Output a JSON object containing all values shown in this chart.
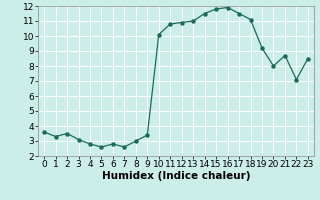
{
  "x": [
    0,
    1,
    2,
    3,
    4,
    5,
    6,
    7,
    8,
    9,
    10,
    11,
    12,
    13,
    14,
    15,
    16,
    17,
    18,
    19,
    20,
    21,
    22,
    23
  ],
  "y": [
    3.6,
    3.3,
    3.5,
    3.1,
    2.8,
    2.6,
    2.8,
    2.6,
    3.0,
    3.4,
    10.1,
    10.8,
    10.9,
    11.0,
    11.5,
    11.8,
    11.9,
    11.5,
    11.1,
    9.2,
    8.0,
    8.7,
    7.1,
    8.5
  ],
  "line_color": "#1a6b5a",
  "marker_color": "#1a6b5a",
  "bg_color": "#cceee8",
  "grid_color": "#ffffff",
  "xlabel": "Humidex (Indice chaleur)",
  "xlim": [
    -0.5,
    23.5
  ],
  "ylim": [
    2,
    12
  ],
  "yticks": [
    2,
    3,
    4,
    5,
    6,
    7,
    8,
    9,
    10,
    11,
    12
  ],
  "xticks": [
    0,
    1,
    2,
    3,
    4,
    5,
    6,
    7,
    8,
    9,
    10,
    11,
    12,
    13,
    14,
    15,
    16,
    17,
    18,
    19,
    20,
    21,
    22,
    23
  ],
  "tick_fontsize": 6.5,
  "xlabel_fontsize": 7.5
}
